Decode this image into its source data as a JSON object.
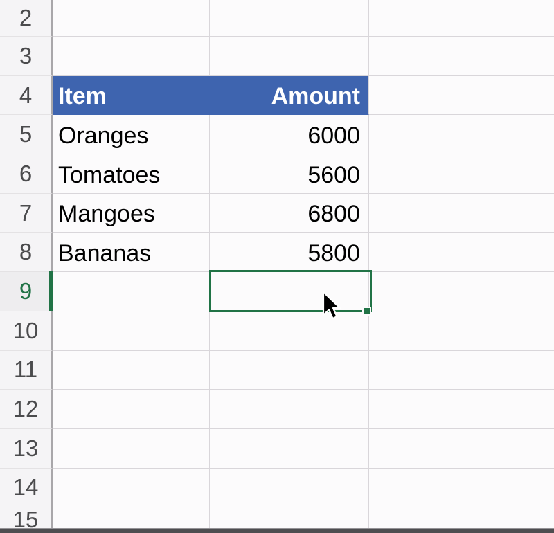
{
  "grid": {
    "rows": [
      {
        "num": "2",
        "cells": [
          "",
          "",
          "",
          ""
        ]
      },
      {
        "num": "3",
        "cells": [
          "",
          "",
          "",
          ""
        ]
      },
      {
        "num": "4",
        "header": true,
        "cells": [
          "Item",
          "Amount",
          "",
          ""
        ]
      },
      {
        "num": "5",
        "cells": [
          "Oranges",
          "6000",
          "",
          ""
        ]
      },
      {
        "num": "6",
        "cells": [
          "Tomatoes",
          "5600",
          "",
          ""
        ]
      },
      {
        "num": "7",
        "cells": [
          "Mangoes",
          "6800",
          "",
          ""
        ]
      },
      {
        "num": "8",
        "cells": [
          "Bananas",
          "5800",
          "",
          ""
        ]
      },
      {
        "num": "9",
        "selected": true,
        "cells": [
          "",
          "",
          "",
          ""
        ]
      },
      {
        "num": "10",
        "cells": [
          "",
          "",
          "",
          ""
        ]
      },
      {
        "num": "11",
        "cells": [
          "",
          "",
          "",
          ""
        ]
      },
      {
        "num": "12",
        "cells": [
          "",
          "",
          "",
          ""
        ]
      },
      {
        "num": "13",
        "cells": [
          "",
          "",
          "",
          ""
        ]
      },
      {
        "num": "14",
        "cells": [
          "",
          "",
          "",
          ""
        ]
      },
      {
        "num": "15",
        "cells": [
          "",
          "",
          "",
          ""
        ]
      }
    ]
  },
  "selection": {
    "row": "9",
    "column_index": 1,
    "has_fill_handle": true
  },
  "colors": {
    "table_header_fill": "#3E64AF",
    "table_header_text": "#FFFFFF",
    "selection_border": "#217346",
    "selected_row_number": "#217346",
    "gridline": "#D9D6DA",
    "row_header_bg": "#F5F4F6"
  },
  "icons": {
    "cursor": "arrow-cursor"
  }
}
